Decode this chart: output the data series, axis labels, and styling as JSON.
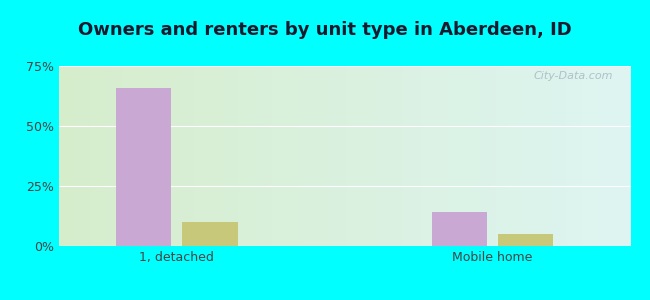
{
  "title": "Owners and renters by unit type in Aberdeen, ID",
  "categories": [
    "1, detached",
    "Mobile home"
  ],
  "owner_values": [
    66,
    14
  ],
  "renter_values": [
    10,
    5
  ],
  "owner_color": "#c9a8d4",
  "renter_color": "#c8c87a",
  "ylim": [
    0,
    75
  ],
  "yticks": [
    0,
    25,
    50,
    75
  ],
  "ytick_labels": [
    "0%",
    "25%",
    "50%",
    "75%"
  ],
  "outer_bg": "#00ffff",
  "watermark": "City-Data.com",
  "bar_width": 0.28,
  "group_positions": [
    1.0,
    2.6
  ],
  "title_fontsize": 13,
  "tick_fontsize": 9,
  "legend_fontsize": 10,
  "xlim": [
    0.4,
    3.3
  ]
}
